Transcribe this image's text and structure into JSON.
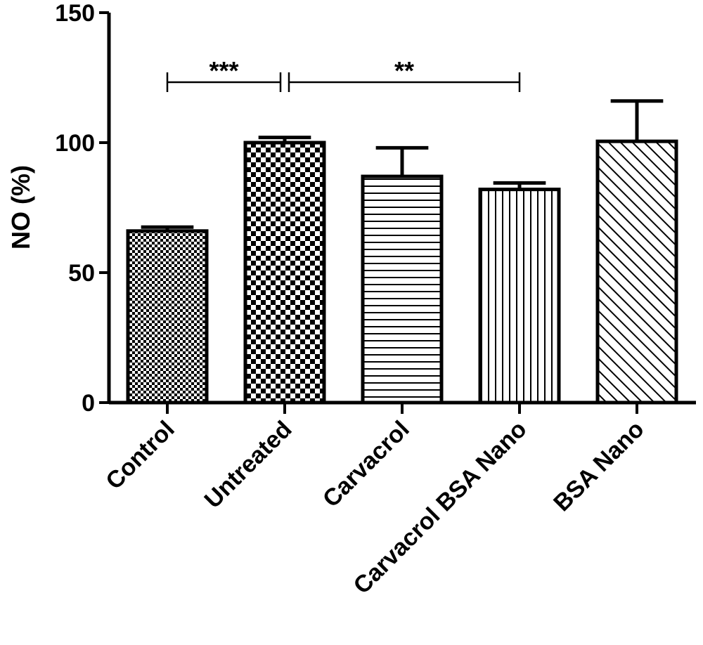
{
  "chart_data": {
    "type": "bar",
    "ylabel": "NO (%)",
    "xlabel": "",
    "ylim": [
      0,
      150
    ],
    "yticks": [
      0,
      50,
      100,
      150
    ],
    "categories": [
      "Control",
      "Untreated",
      "Carvacrol",
      "Carvacrol BSA Nano",
      "BSA Nano"
    ],
    "values": [
      66,
      100,
      87,
      82,
      100.5
    ],
    "errors": [
      1.5,
      2,
      11,
      2.5,
      15.5
    ],
    "patterns": [
      "fine-checker",
      "checker",
      "horizontal-lines",
      "vertical-lines",
      "diagonal-lines"
    ],
    "significance": [
      {
        "from": "Control",
        "to": "Untreated",
        "label": "***",
        "y": 130
      },
      {
        "from": "Untreated",
        "to": "Carvacrol BSA Nano",
        "label": "**",
        "y": 130
      }
    ],
    "grid": false,
    "legend": "none"
  }
}
